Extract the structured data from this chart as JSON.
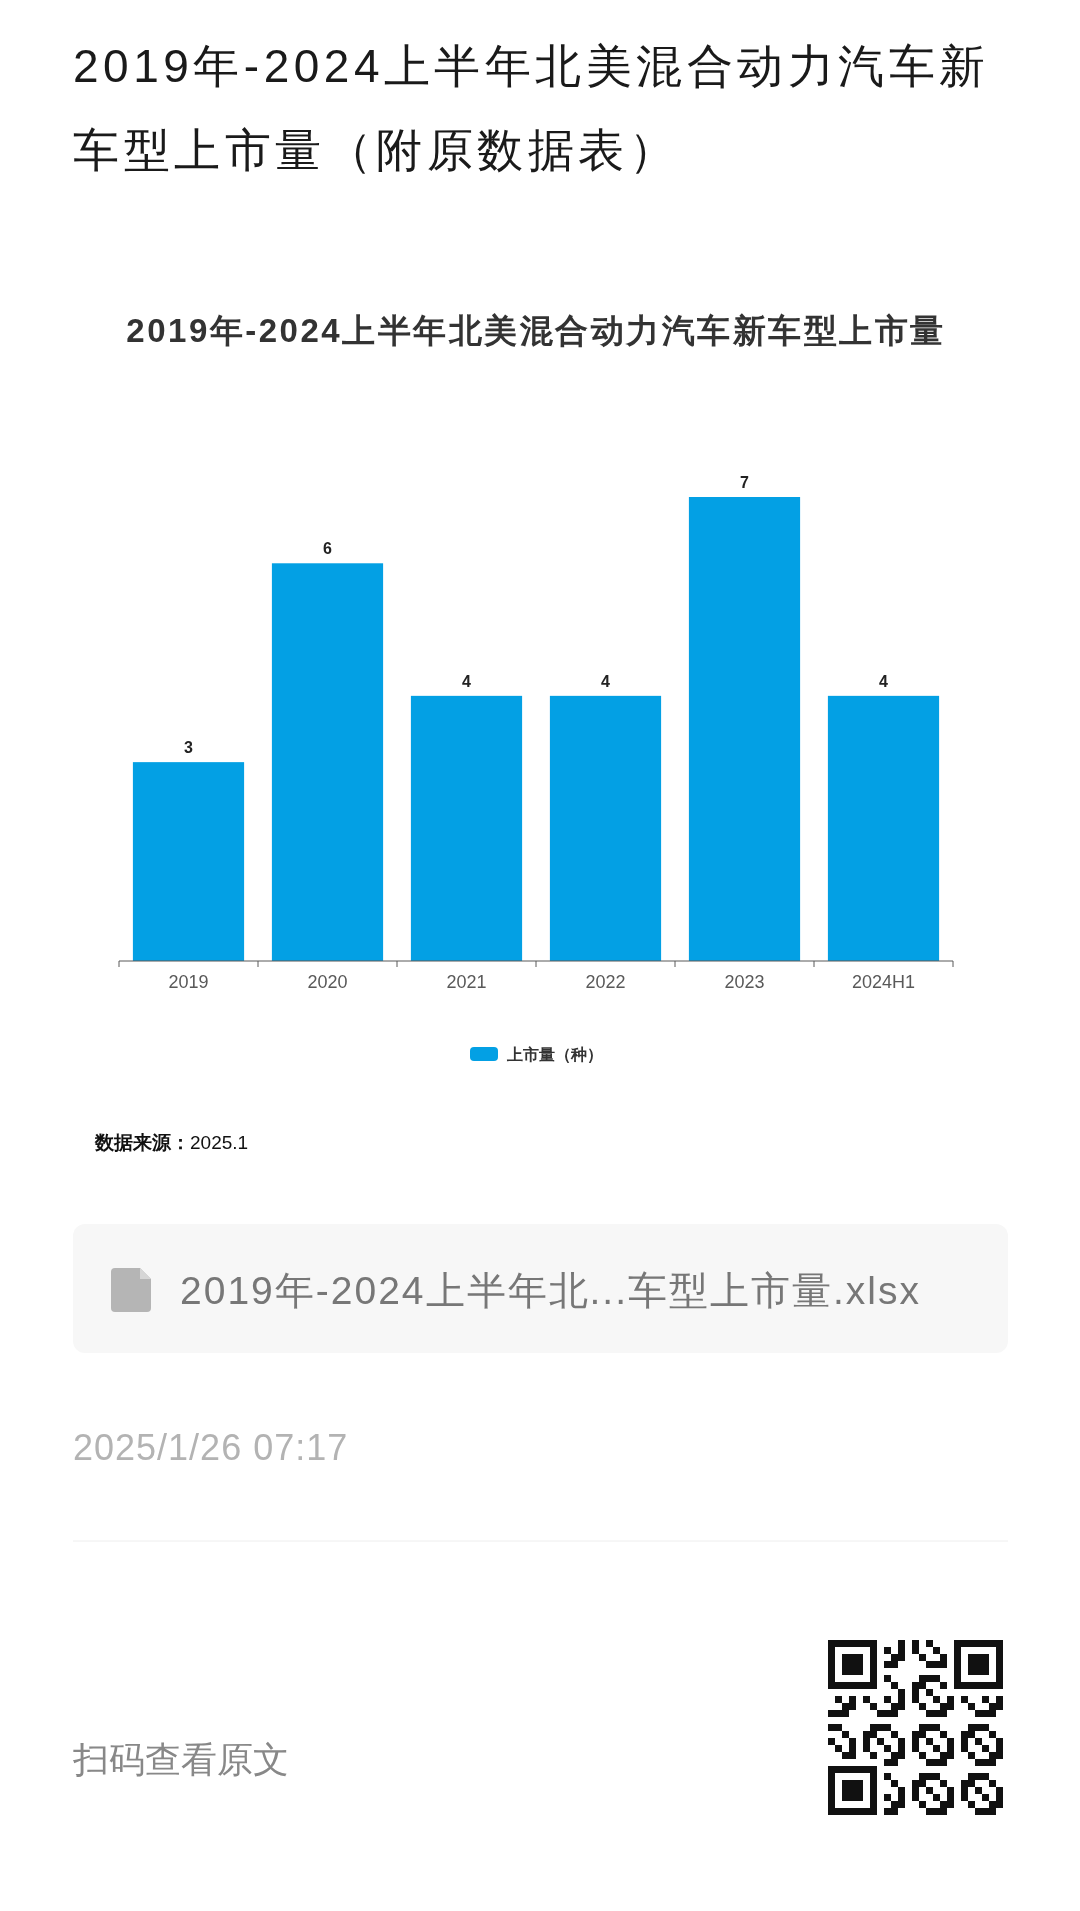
{
  "chart_data": {
    "type": "bar",
    "title": "2019年-2024上半年北美混合动力汽车新车型上市量（附原数据表）",
    "subtitle": "2019年-2024上半年北美混合动力汽车新车型上市量",
    "categories": [
      "2019",
      "2020",
      "2021",
      "2022",
      "2023",
      "2024H1"
    ],
    "series": [
      {
        "name": "上市量（种）",
        "color": "#03a0e4",
        "values": [
          3,
          6,
          4,
          4,
          7,
          4
        ]
      }
    ],
    "data_labels": true,
    "legend": "bottom",
    "annotations": [
      "**数据来源：**2025.1",
      "2019年-2024上半年北...车型上市量.xlsx",
      "2025/1/26 07:17",
      "扫码查看原文"
    ]
  }
}
